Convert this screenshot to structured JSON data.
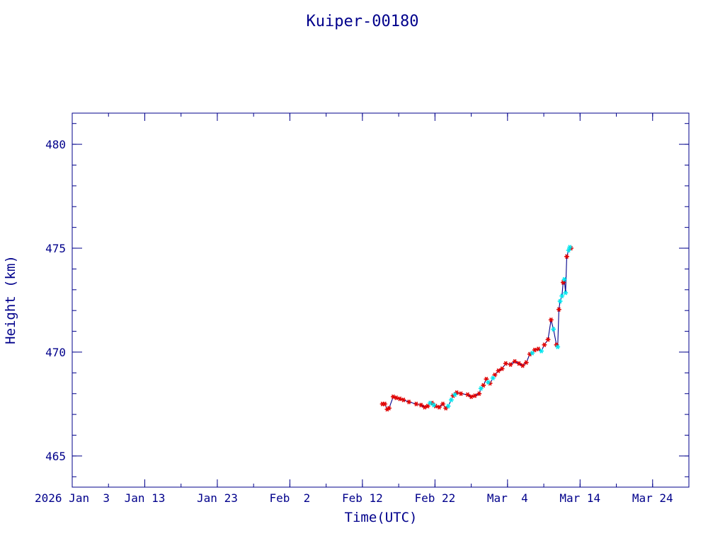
{
  "chart_data": {
    "type": "scatter",
    "title": "Kuiper-00180",
    "xlabel": "Time(UTC)",
    "ylabel": "Height (km)",
    "xlim": [
      "2026-01-03",
      "2026-03-29"
    ],
    "ylim": [
      463.5,
      481.5
    ],
    "x_ticks": [
      {
        "date": "2026-01-03",
        "label": "2026 Jan  3"
      },
      {
        "date": "2026-01-13",
        "label": "Jan 13"
      },
      {
        "date": "2026-01-23",
        "label": "Jan 23"
      },
      {
        "date": "2026-02-02",
        "label": "Feb  2"
      },
      {
        "date": "2026-02-12",
        "label": "Feb 12"
      },
      {
        "date": "2026-02-22",
        "label": "Feb 22"
      },
      {
        "date": "2026-03-04",
        "label": "Mar  4"
      },
      {
        "date": "2026-03-14",
        "label": "Mar 14"
      },
      {
        "date": "2026-03-24",
        "label": "Mar 24"
      }
    ],
    "y_ticks": [
      465,
      470,
      475,
      480
    ],
    "grid": false,
    "connect_points": true,
    "colors": {
      "axis": "#00008b",
      "line": "#00008b",
      "primary": "#e00000",
      "secondary": "#00e5ee"
    },
    "series": [
      {
        "color": "#e00000",
        "marker": "star",
        "points": [
          [
            "2026-02-14T18:00",
            467.5
          ],
          [
            "2026-02-15T02:00",
            467.5
          ],
          [
            "2026-02-15T10:00",
            467.25
          ],
          [
            "2026-02-15T16:00",
            467.3
          ],
          [
            "2026-02-16T06:00",
            467.85
          ],
          [
            "2026-02-16T16:00",
            467.8
          ],
          [
            "2026-02-17T04:00",
            467.75
          ],
          [
            "2026-02-17T16:00",
            467.7
          ],
          [
            "2026-02-18T10:00",
            467.6
          ],
          [
            "2026-02-19T10:00",
            467.5
          ],
          [
            "2026-02-20T02:00",
            467.45
          ],
          [
            "2026-02-20T14:00",
            467.35
          ],
          [
            "2026-02-21T00:00",
            467.4
          ],
          [
            "2026-02-21T14:00",
            467.55
          ],
          [
            "2026-02-22T02:00",
            467.4
          ],
          [
            "2026-02-22T14:00",
            467.35
          ],
          [
            "2026-02-23T02:00",
            467.5
          ],
          [
            "2026-02-23T12:00",
            467.3
          ],
          [
            "2026-02-24T12:00",
            467.9
          ],
          [
            "2026-02-25T00:00",
            468.05
          ],
          [
            "2026-02-25T14:00",
            468.0
          ],
          [
            "2026-02-26T12:00",
            467.95
          ],
          [
            "2026-02-27T00:00",
            467.85
          ],
          [
            "2026-02-27T12:00",
            467.9
          ],
          [
            "2026-02-28T02:00",
            468.0
          ],
          [
            "2026-02-28T16:00",
            468.4
          ],
          [
            "2026-03-01T02:00",
            468.7
          ],
          [
            "2026-03-01T14:00",
            468.5
          ],
          [
            "2026-03-02T06:00",
            468.9
          ],
          [
            "2026-03-02T18:00",
            469.1
          ],
          [
            "2026-03-03T06:00",
            469.2
          ],
          [
            "2026-03-03T18:00",
            469.45
          ],
          [
            "2026-03-04T10:00",
            469.4
          ],
          [
            "2026-03-05T00:00",
            469.55
          ],
          [
            "2026-03-05T14:00",
            469.45
          ],
          [
            "2026-03-06T02:00",
            469.35
          ],
          [
            "2026-03-06T14:00",
            469.5
          ],
          [
            "2026-03-07T02:00",
            469.9
          ],
          [
            "2026-03-07T18:00",
            470.1
          ],
          [
            "2026-03-08T06:00",
            470.15
          ],
          [
            "2026-03-09T02:00",
            470.35
          ],
          [
            "2026-03-09T14:00",
            470.6
          ],
          [
            "2026-03-10T00:00",
            471.55
          ],
          [
            "2026-03-10T18:00",
            470.35
          ],
          [
            "2026-03-11T02:00",
            472.05
          ],
          [
            "2026-03-11T16:00",
            473.35
          ],
          [
            "2026-03-12T04:00",
            474.6
          ],
          [
            "2026-03-12T18:00",
            475.0
          ]
        ]
      },
      {
        "color": "#00e5ee",
        "marker": "star",
        "points": [
          [
            "2026-02-21T08:00",
            467.55
          ],
          [
            "2026-02-21T20:00",
            467.45
          ],
          [
            "2026-02-23T20:00",
            467.4
          ],
          [
            "2026-02-24T06:00",
            467.7
          ],
          [
            "2026-02-24T18:00",
            467.95
          ],
          [
            "2026-02-28T08:00",
            468.25
          ],
          [
            "2026-03-01T08:00",
            468.55
          ],
          [
            "2026-03-02T00:00",
            468.75
          ],
          [
            "2026-03-07T10:00",
            469.95
          ],
          [
            "2026-03-08T16:00",
            470.05
          ],
          [
            "2026-03-10T08:00",
            471.1
          ],
          [
            "2026-03-10T22:00",
            470.25
          ],
          [
            "2026-03-11T06:00",
            472.45
          ],
          [
            "2026-03-11T12:00",
            472.7
          ],
          [
            "2026-03-11T20:00",
            473.5
          ],
          [
            "2026-03-12T00:00",
            472.85
          ],
          [
            "2026-03-12T10:00",
            474.9
          ],
          [
            "2026-03-12T14:00",
            475.05
          ]
        ]
      }
    ]
  }
}
